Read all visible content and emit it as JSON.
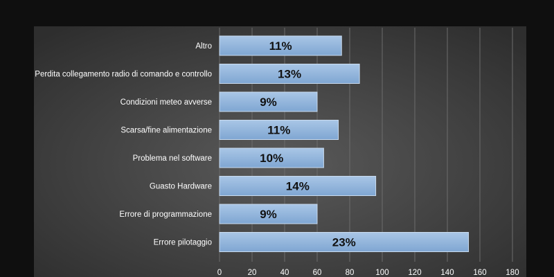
{
  "colors": {
    "page_background": "#0f0f0f",
    "plot_background_center": "#5a5a5a",
    "plot_background_edge": "#2e2e2e",
    "bar_fill_top": "#a9c6e6",
    "bar_fill_bottom": "#7fa6d2",
    "bar_stroke": "#c9dbef",
    "grid_line": "#6c6c6c",
    "text": "#ffffff",
    "data_label": "#111111"
  },
  "chart_data": {
    "type": "bar",
    "orientation": "horizontal",
    "title": "",
    "xlabel": "",
    "ylabel": "",
    "categories": [
      "Altro",
      "Perdita collegamento radio di comando e controllo",
      "Condizioni meteo avverse",
      "Scarsa/fine alimentazione",
      "Problema nel software",
      "Guasto Hardware",
      "Errore di programmazione",
      "Errore pilotaggio"
    ],
    "values": [
      75,
      86,
      60,
      73,
      64,
      96,
      60,
      153
    ],
    "data_labels": [
      "11%",
      "13%",
      "9%",
      "11%",
      "10%",
      "14%",
      "9%",
      "23%"
    ],
    "xlim": [
      0,
      180
    ],
    "x_ticks": [
      0,
      20,
      40,
      60,
      80,
      100,
      120,
      140,
      160,
      180
    ],
    "grid": true,
    "legend": "none"
  }
}
